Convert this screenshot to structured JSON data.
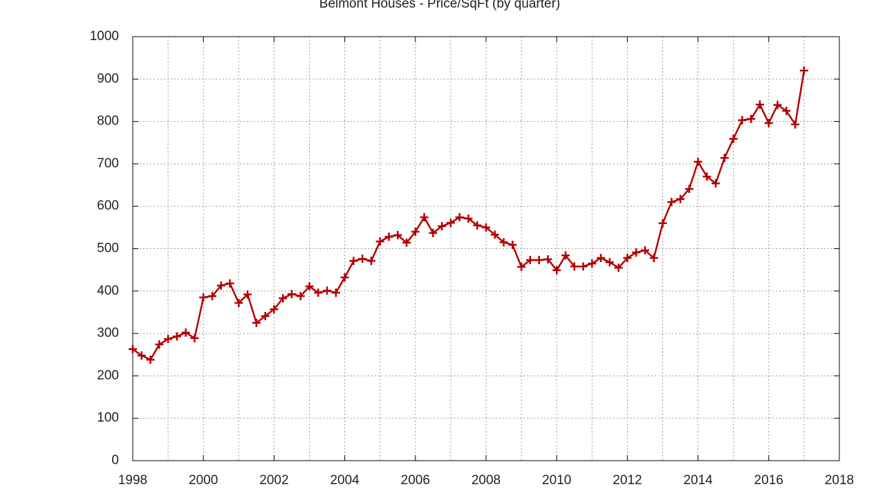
{
  "chart_data": {
    "type": "line",
    "title": "Belmont Houses - Price/SqFt (by quarter)",
    "x": [
      1998,
      1998.25,
      1998.5,
      1998.75,
      1999,
      1999.25,
      1999.5,
      1999.75,
      2000,
      2000.25,
      2000.5,
      2000.75,
      2001,
      2001.25,
      2001.5,
      2001.75,
      2002,
      2002.25,
      2002.5,
      2002.75,
      2003,
      2003.25,
      2003.5,
      2003.75,
      2004,
      2004.25,
      2004.5,
      2004.75,
      2005,
      2005.25,
      2005.5,
      2005.75,
      2006,
      2006.25,
      2006.5,
      2006.75,
      2007,
      2007.25,
      2007.5,
      2007.75,
      2008,
      2008.25,
      2008.5,
      2008.75,
      2009,
      2009.25,
      2009.5,
      2009.75,
      2010,
      2010.25,
      2010.5,
      2010.75,
      2011,
      2011.25,
      2011.5,
      2011.75,
      2012,
      2012.25,
      2012.5,
      2012.75,
      2013,
      2013.25,
      2013.5,
      2013.75,
      2014,
      2014.25,
      2014.5,
      2014.75,
      2015,
      2015.25,
      2015.5,
      2015.75,
      2016,
      2016.25,
      2016.5,
      2016.75,
      2017
    ],
    "series": [
      {
        "color": "#b30000",
        "values": [
          263,
          248,
          238,
          274,
          287,
          293,
          302,
          289,
          385,
          388,
          413,
          418,
          372,
          392,
          325,
          341,
          357,
          383,
          393,
          388,
          411,
          396,
          401,
          396,
          432,
          471,
          476,
          471,
          517,
          528,
          532,
          514,
          540,
          574,
          537,
          553,
          561,
          574,
          571,
          555,
          550,
          533,
          515,
          509,
          457,
          473,
          473,
          475,
          449,
          484,
          458,
          458,
          465,
          478,
          468,
          455,
          478,
          491,
          496,
          478,
          560,
          610,
          617,
          641,
          705,
          670,
          654,
          714,
          759,
          803,
          806,
          840,
          796,
          839,
          825,
          793,
          920
        ]
      }
    ],
    "xlim": [
      1998,
      2018
    ],
    "xticks": [
      1998,
      2000,
      2002,
      2004,
      2006,
      2008,
      2010,
      2012,
      2014,
      2016,
      2018
    ],
    "ylim": [
      0,
      1000
    ],
    "yticks": [
      0,
      100,
      200,
      300,
      400,
      500,
      600,
      700,
      800,
      900,
      1000
    ],
    "grid": true
  }
}
